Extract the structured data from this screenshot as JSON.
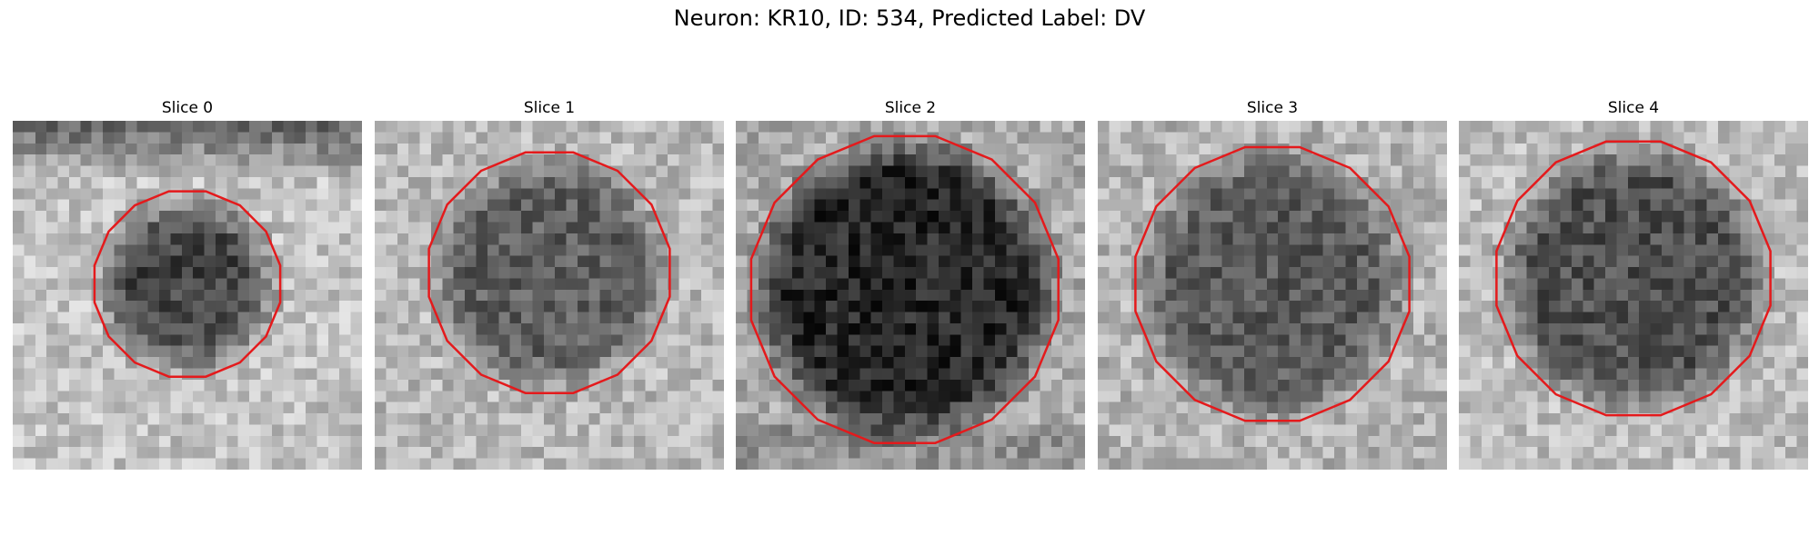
{
  "figure": {
    "title": "Neuron: KR10, ID: 534, Predicted Label: DV"
  },
  "panels": [
    {
      "title": "Slice 0"
    },
    {
      "title": "Slice 1"
    },
    {
      "title": "Slice 2"
    },
    {
      "title": "Slice 3"
    },
    {
      "title": "Slice 4"
    }
  ],
  "colors": {
    "outline": "#e41a1c",
    "background": "#ffffff"
  }
}
